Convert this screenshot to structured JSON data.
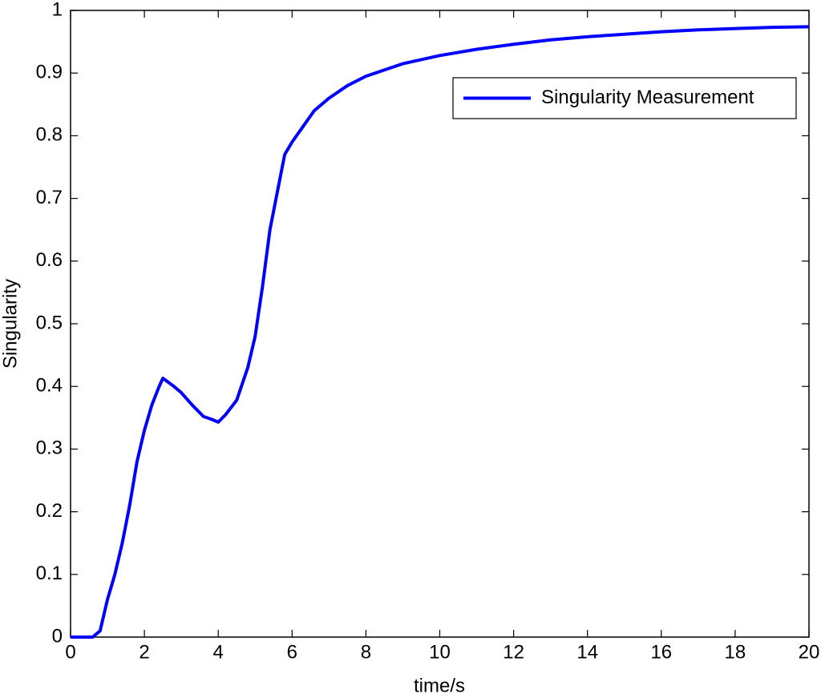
{
  "chart_data": {
    "type": "line",
    "xlabel": "time/s",
    "ylabel": "Singularity",
    "x": [
      0,
      0.5,
      0.6,
      0.8,
      1.0,
      1.2,
      1.4,
      1.6,
      1.8,
      2.0,
      2.2,
      2.4,
      2.5,
      2.8,
      3.0,
      3.3,
      3.6,
      3.8,
      4.0,
      4.2,
      4.5,
      4.8,
      5.0,
      5.2,
      5.4,
      5.6,
      5.8,
      6.0,
      6.3,
      6.6,
      7.0,
      7.5,
      8.0,
      9,
      10,
      11,
      12,
      13,
      14,
      15,
      16,
      17,
      18,
      19,
      20
    ],
    "series": [
      {
        "name": "Singularity Measurement",
        "color": "#0000ff",
        "values": [
          0,
          0,
          0,
          0.01,
          0.06,
          0.1,
          0.15,
          0.21,
          0.28,
          0.33,
          0.37,
          0.4,
          0.413,
          0.4,
          0.39,
          0.37,
          0.352,
          0.348,
          0.343,
          0.355,
          0.378,
          0.43,
          0.48,
          0.56,
          0.65,
          0.71,
          0.77,
          0.79,
          0.815,
          0.84,
          0.86,
          0.88,
          0.895,
          0.915,
          0.928,
          0.938,
          0.946,
          0.953,
          0.958,
          0.962,
          0.966,
          0.969,
          0.971,
          0.973,
          0.974
        ]
      }
    ],
    "xlim": [
      0,
      20
    ],
    "xticks": [
      0,
      2,
      4,
      6,
      8,
      10,
      12,
      14,
      16,
      18,
      20
    ],
    "ylim": [
      0,
      1
    ],
    "yticks": [
      0,
      0.1,
      0.2,
      0.3,
      0.4,
      0.5,
      0.6,
      0.7,
      0.8,
      0.9,
      1
    ],
    "grid": false,
    "legend": "upper right"
  }
}
